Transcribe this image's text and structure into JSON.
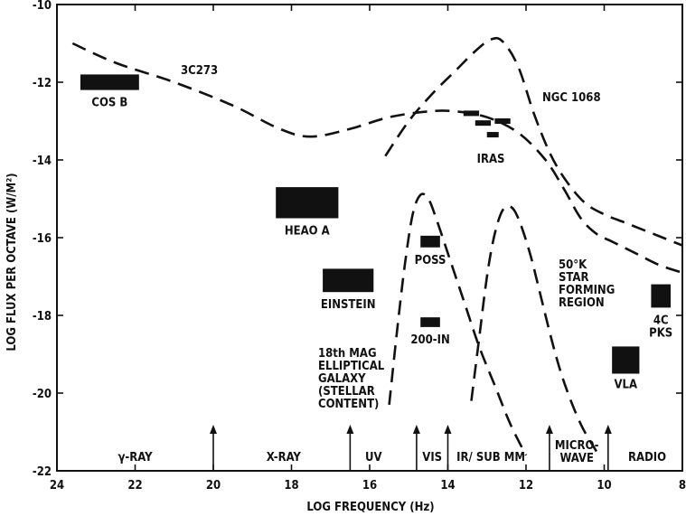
{
  "chart_data": {
    "type": "line",
    "title": "",
    "xlabel": "LOG FREQUENCY (Hz)",
    "ylabel": "LOG FLUX PER OCTAVE (W/M²)",
    "xlim": [
      24,
      8
    ],
    "ylim": [
      -22,
      -10
    ],
    "x_reversed": true,
    "x_ticks": [
      24,
      22,
      20,
      18,
      16,
      14,
      12,
      10,
      8
    ],
    "x_tick_labels": [
      "24",
      "22",
      "20",
      "18",
      "16",
      "14",
      "12",
      "10",
      "8"
    ],
    "y_ticks": [
      -10,
      -12,
      -14,
      -16,
      -18,
      -20,
      -22
    ],
    "y_tick_labels": [
      "-10",
      "-12",
      "-14",
      "-16",
      "-18",
      "-20",
      "-22"
    ],
    "grid": false,
    "legend": "none",
    "series": [
      {
        "name": "3C273",
        "style": "dashed",
        "x": [
          23.6,
          22.5,
          21.0,
          19.5,
          18.3,
          17.5,
          16.5,
          15.5,
          14.5,
          13.8,
          13.0,
          12.2,
          11.5,
          11.0,
          10.6,
          10.2,
          9.8,
          9.2,
          8.6,
          8.0
        ],
        "y": [
          -11.0,
          -11.5,
          -12.0,
          -12.6,
          -13.2,
          -13.4,
          -13.2,
          -12.9,
          -12.75,
          -12.75,
          -12.9,
          -13.3,
          -14.0,
          -14.8,
          -15.5,
          -15.9,
          -16.1,
          -16.4,
          -16.7,
          -16.9
        ]
      },
      {
        "name": "NGC 1068",
        "style": "dashed",
        "x": [
          15.6,
          15.0,
          14.4,
          13.8,
          13.3,
          12.9,
          12.6,
          12.2,
          11.8,
          11.4,
          11.0,
          10.5,
          10.0,
          9.5,
          9.0,
          8.5,
          8.0
        ],
        "y": [
          -13.9,
          -13.0,
          -12.3,
          -11.7,
          -11.2,
          -10.9,
          -10.95,
          -11.6,
          -12.8,
          -13.8,
          -14.5,
          -15.1,
          -15.4,
          -15.6,
          -15.8,
          -16.0,
          -16.2
        ]
      },
      {
        "name": "18th MAG ELLIPTICAL GALAXY (STELLAR CONTENT)",
        "style": "dashed",
        "x": [
          15.5,
          15.3,
          15.1,
          14.9,
          14.7,
          14.5,
          14.3,
          14.0,
          13.6,
          13.2,
          12.8,
          12.4,
          12.0
        ],
        "y": [
          -20.3,
          -18.4,
          -16.7,
          -15.4,
          -14.9,
          -15.0,
          -15.5,
          -16.4,
          -17.6,
          -18.8,
          -19.8,
          -20.8,
          -21.6
        ]
      },
      {
        "name": "50°K STAR FORMING REGION",
        "style": "dashed",
        "x": [
          13.4,
          13.2,
          13.0,
          12.8,
          12.6,
          12.4,
          12.2,
          11.9,
          11.6,
          11.3,
          11.0,
          10.6,
          10.2
        ],
        "y": [
          -20.2,
          -18.6,
          -17.0,
          -15.9,
          -15.3,
          -15.2,
          -15.5,
          -16.4,
          -17.6,
          -18.8,
          -19.8,
          -20.8,
          -21.5
        ]
      }
    ],
    "instruments": [
      {
        "label": "COS B",
        "x_range": [
          23.4,
          21.9
        ],
        "y_range": [
          -11.8,
          -12.2
        ]
      },
      {
        "label": "HEAO A",
        "x_range": [
          18.4,
          16.8
        ],
        "y_range": [
          -14.7,
          -15.5
        ]
      },
      {
        "label": "EINSTEIN",
        "x_range": [
          17.2,
          15.9
        ],
        "y_range": [
          -16.8,
          -17.4
        ]
      },
      {
        "label": "POSS",
        "x_range": [
          14.7,
          14.2
        ],
        "y_range": [
          -15.95,
          -16.25
        ]
      },
      {
        "label": "200-IN",
        "x_range": [
          14.7,
          14.2
        ],
        "y_range": [
          -18.05,
          -18.3
        ]
      },
      {
        "label": "IRAS",
        "x_range": [
          13.6,
          12.2
        ],
        "y_range": [
          -12.7,
          -13.6
        ]
      },
      {
        "label": "VLA",
        "x_range": [
          9.8,
          9.1
        ],
        "y_range": [
          -18.8,
          -19.5
        ]
      },
      {
        "label": "4C\nPKS",
        "x_range": [
          8.8,
          8.3
        ],
        "y_range": [
          -17.2,
          -17.8
        ]
      }
    ],
    "iras_bars": [
      {
        "x": [
          13.6,
          13.2
        ],
        "y": -12.8
      },
      {
        "x": [
          13.3,
          12.9
        ],
        "y": -13.05
      },
      {
        "x": [
          12.8,
          12.4
        ],
        "y": -13.0
      },
      {
        "x": [
          13.0,
          12.7
        ],
        "y": -13.35
      }
    ],
    "bands": [
      {
        "label": "γ-RAY",
        "x_center": 22.0
      },
      {
        "label": "X-RAY",
        "x_center": 18.2
      },
      {
        "label": "UV",
        "x_center": 15.9
      },
      {
        "label": "VIS",
        "x_center": 14.4
      },
      {
        "label": "IR/ SUB MM",
        "x_center": 12.9
      },
      {
        "label": "MICRO-\nWAVE",
        "x_center": 10.7
      },
      {
        "label": "RADIO",
        "x_center": 8.9
      }
    ],
    "band_boundaries": [
      20.0,
      16.5,
      14.8,
      14.0,
      11.4,
      9.9
    ],
    "annotations": [
      {
        "text": "3C273"
      },
      {
        "text": "NGC 1068"
      },
      {
        "text": "18th MAG\nELLIPTICAL\nGALAXY\n(STELLAR\nCONTENT)"
      },
      {
        "text": "50°K\nSTAR\nFORMING\nREGION"
      }
    ]
  }
}
